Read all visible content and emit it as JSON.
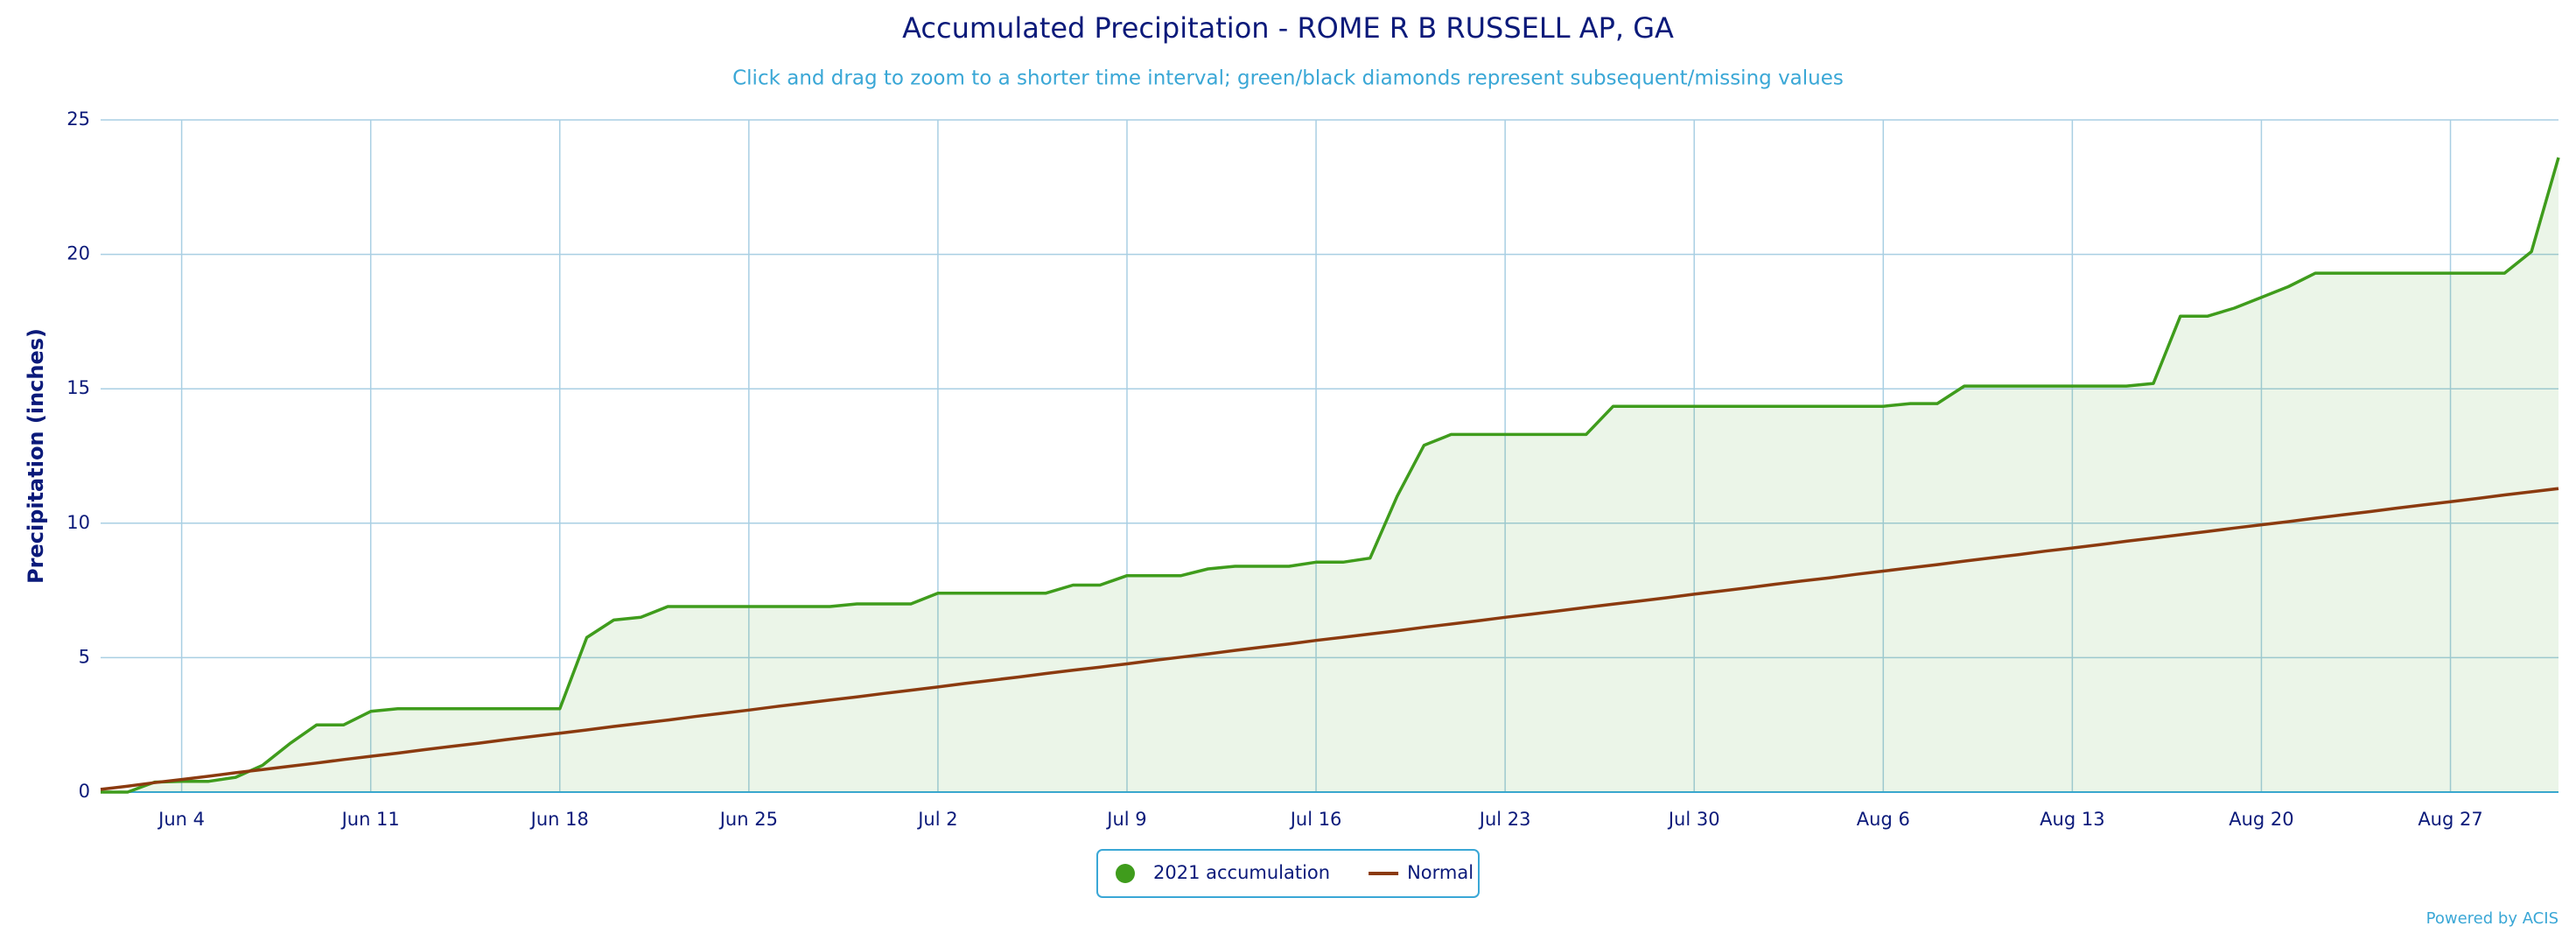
{
  "chart_data": {
    "type": "line",
    "title": "Accumulated Precipitation - ROME R B RUSSELL AP, GA",
    "subtitle": "Click and drag to zoom to a shorter time interval; green/black diamonds represent subsequent/missing values",
    "y_label": "Precipitation (inches)",
    "credit": "Powered by ACIS",
    "categories": [
      null,
      null,
      null,
      "Jun 4",
      null,
      null,
      null,
      null,
      null,
      null,
      "Jun 11",
      null,
      null,
      null,
      null,
      null,
      null,
      "Jun 18",
      null,
      null,
      null,
      null,
      null,
      null,
      "Jun 25",
      null,
      null,
      null,
      null,
      null,
      null,
      "Jul 2",
      null,
      null,
      null,
      null,
      null,
      null,
      "Jul 9",
      null,
      null,
      null,
      null,
      null,
      null,
      "Jul 16",
      null,
      null,
      null,
      null,
      null,
      null,
      "Jul 23",
      null,
      null,
      null,
      null,
      null,
      null,
      "Jul 30",
      null,
      null,
      null,
      null,
      null,
      null,
      "Aug 6",
      null,
      null,
      null,
      null,
      null,
      null,
      "Aug 13",
      null,
      null,
      null,
      null,
      null,
      null,
      "Aug 20",
      null,
      null,
      null,
      null,
      null,
      null,
      "Aug 27",
      null,
      null,
      null,
      null
    ],
    "series": [
      {
        "name": "2021 accumulation",
        "color": "#3f9c1c",
        "fill": true,
        "values": [
          0,
          0,
          0.37,
          0.4,
          0.4,
          0.55,
          1.0,
          1.8,
          2.5,
          2.5,
          3.0,
          3.1,
          3.1,
          3.1,
          3.1,
          3.1,
          3.1,
          3.1,
          5.75,
          6.4,
          6.5,
          6.9,
          6.9,
          6.9,
          6.9,
          6.9,
          6.9,
          6.9,
          7.0,
          7.0,
          7.0,
          7.4,
          7.4,
          7.4,
          7.4,
          7.4,
          7.7,
          7.7,
          8.05,
          8.05,
          8.05,
          8.3,
          8.4,
          8.4,
          8.4,
          8.55,
          8.55,
          8.7,
          11.0,
          12.9,
          13.3,
          13.3,
          13.3,
          13.3,
          13.3,
          13.3,
          14.35,
          14.35,
          14.35,
          14.35,
          14.35,
          14.35,
          14.35,
          14.35,
          14.35,
          14.35,
          14.35,
          14.45,
          14.45,
          15.1,
          15.1,
          15.1,
          15.1,
          15.1,
          15.1,
          15.1,
          15.2,
          17.7,
          17.7,
          18.0,
          18.4,
          18.8,
          19.3,
          19.3,
          19.3,
          19.3,
          19.3,
          19.3,
          19.3,
          19.3,
          20.1,
          23.6
        ]
      },
      {
        "name": "Normal",
        "color": "#8b3a0f",
        "fill": false,
        "values": [
          0.1,
          0.22,
          0.35,
          0.47,
          0.59,
          0.72,
          0.84,
          0.96,
          1.08,
          1.21,
          1.33,
          1.45,
          1.58,
          1.7,
          1.82,
          1.95,
          2.07,
          2.19,
          2.31,
          2.44,
          2.56,
          2.68,
          2.81,
          2.93,
          3.05,
          3.18,
          3.3,
          3.42,
          3.54,
          3.67,
          3.79,
          3.91,
          4.04,
          4.16,
          4.28,
          4.41,
          4.53,
          4.65,
          4.77,
          4.9,
          5.02,
          5.14,
          5.27,
          5.39,
          5.51,
          5.64,
          5.76,
          5.88,
          6.0,
          6.13,
          6.25,
          6.37,
          6.5,
          6.62,
          6.74,
          6.87,
          6.99,
          7.11,
          7.23,
          7.36,
          7.48,
          7.6,
          7.73,
          7.85,
          7.97,
          8.1,
          8.22,
          8.34,
          8.46,
          8.59,
          8.71,
          8.83,
          8.96,
          9.08,
          9.2,
          9.33,
          9.45,
          9.57,
          9.69,
          9.82,
          9.94,
          10.06,
          10.19,
          10.31,
          10.43,
          10.56,
          10.68,
          10.8,
          10.92,
          11.05,
          11.17,
          11.29
        ]
      }
    ],
    "ylim": [
      0,
      25
    ],
    "yticks": [
      0,
      5,
      10,
      15,
      20,
      25
    ],
    "grid": true,
    "legend": "bottom"
  }
}
